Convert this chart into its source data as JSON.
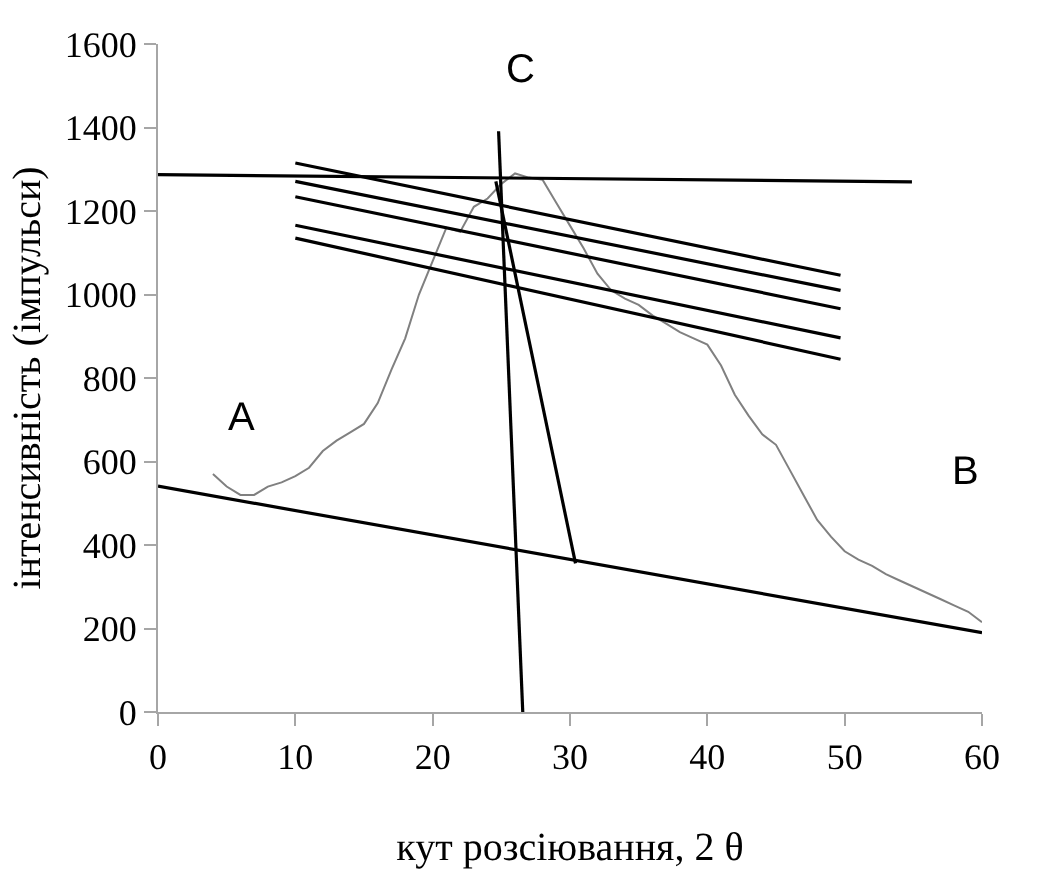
{
  "chart_data": {
    "type": "line",
    "xlabel": "кут розсіювання, 2 θ",
    "ylabel": "інтенсивність (імпульси)",
    "xlim": [
      0,
      60
    ],
    "ylim": [
      0,
      1600
    ],
    "xticks": [
      0,
      10,
      20,
      30,
      40,
      50,
      60
    ],
    "yticks": [
      0,
      200,
      400,
      600,
      800,
      1000,
      1200,
      1400,
      1600
    ],
    "marker": "none",
    "line_style": "solid",
    "x": [
      4,
      5,
      6,
      7,
      8,
      9,
      10,
      11,
      12,
      13,
      14,
      15,
      16,
      17,
      18,
      19,
      20,
      21,
      22,
      23,
      24,
      25,
      26,
      27,
      28,
      29,
      30,
      31,
      32,
      33,
      34,
      35,
      36,
      37,
      38,
      39,
      40,
      41,
      42,
      43,
      44,
      45,
      46,
      47,
      48,
      49,
      50,
      51,
      52,
      53,
      54,
      55,
      56,
      57,
      58,
      59,
      60
    ],
    "series": [
      {
        "color": "#808080",
        "values": [
          570,
          540,
          520,
          520,
          540,
          550,
          565,
          585,
          625,
          650,
          670,
          690,
          740,
          820,
          895,
          1000,
          1080,
          1160,
          1150,
          1210,
          1230,
          1265,
          1290,
          1280,
          1275,
          1220,
          1165,
          1110,
          1050,
          1010,
          990,
          975,
          950,
          930,
          910,
          895,
          880,
          830,
          760,
          710,
          665,
          640,
          580,
          520,
          460,
          420,
          385,
          365,
          350,
          330,
          315,
          300,
          285,
          270,
          255,
          240,
          215
        ]
      },
      {
        "type": "line",
        "color": "#000000",
        "x": [
          0,
          60
        ],
        "values": [
          541,
          190
        ]
      },
      {
        "type": "line",
        "color": "#000000",
        "x": [
          0,
          54.9
        ],
        "values": [
          1287,
          1270
        ]
      },
      {
        "type": "line",
        "color": "#000000",
        "x": [
          10,
          49.7
        ],
        "values": [
          1315,
          1046
        ]
      },
      {
        "type": "line",
        "color": "#000000",
        "x": [
          10,
          49.7
        ],
        "values": [
          1271,
          1010
        ]
      },
      {
        "type": "line",
        "color": "#000000",
        "x": [
          10,
          49.7
        ],
        "values": [
          1234,
          966
        ]
      },
      {
        "type": "line",
        "color": "#000000",
        "x": [
          10,
          49.7
        ],
        "values": [
          1166,
          896
        ]
      },
      {
        "type": "line",
        "color": "#000000",
        "x": [
          10,
          49.7
        ],
        "values": [
          1135,
          845
        ]
      },
      {
        "type": "line",
        "color": "#000000",
        "x": [
          24.8,
          26.56
        ],
        "values": [
          1391,
          0
        ]
      },
      {
        "type": "line",
        "color": "#000000",
        "x": [
          24.6,
          30.4
        ],
        "values": [
          1271,
          356
        ]
      }
    ],
    "annotations": [
      "A",
      "B",
      "C"
    ]
  }
}
